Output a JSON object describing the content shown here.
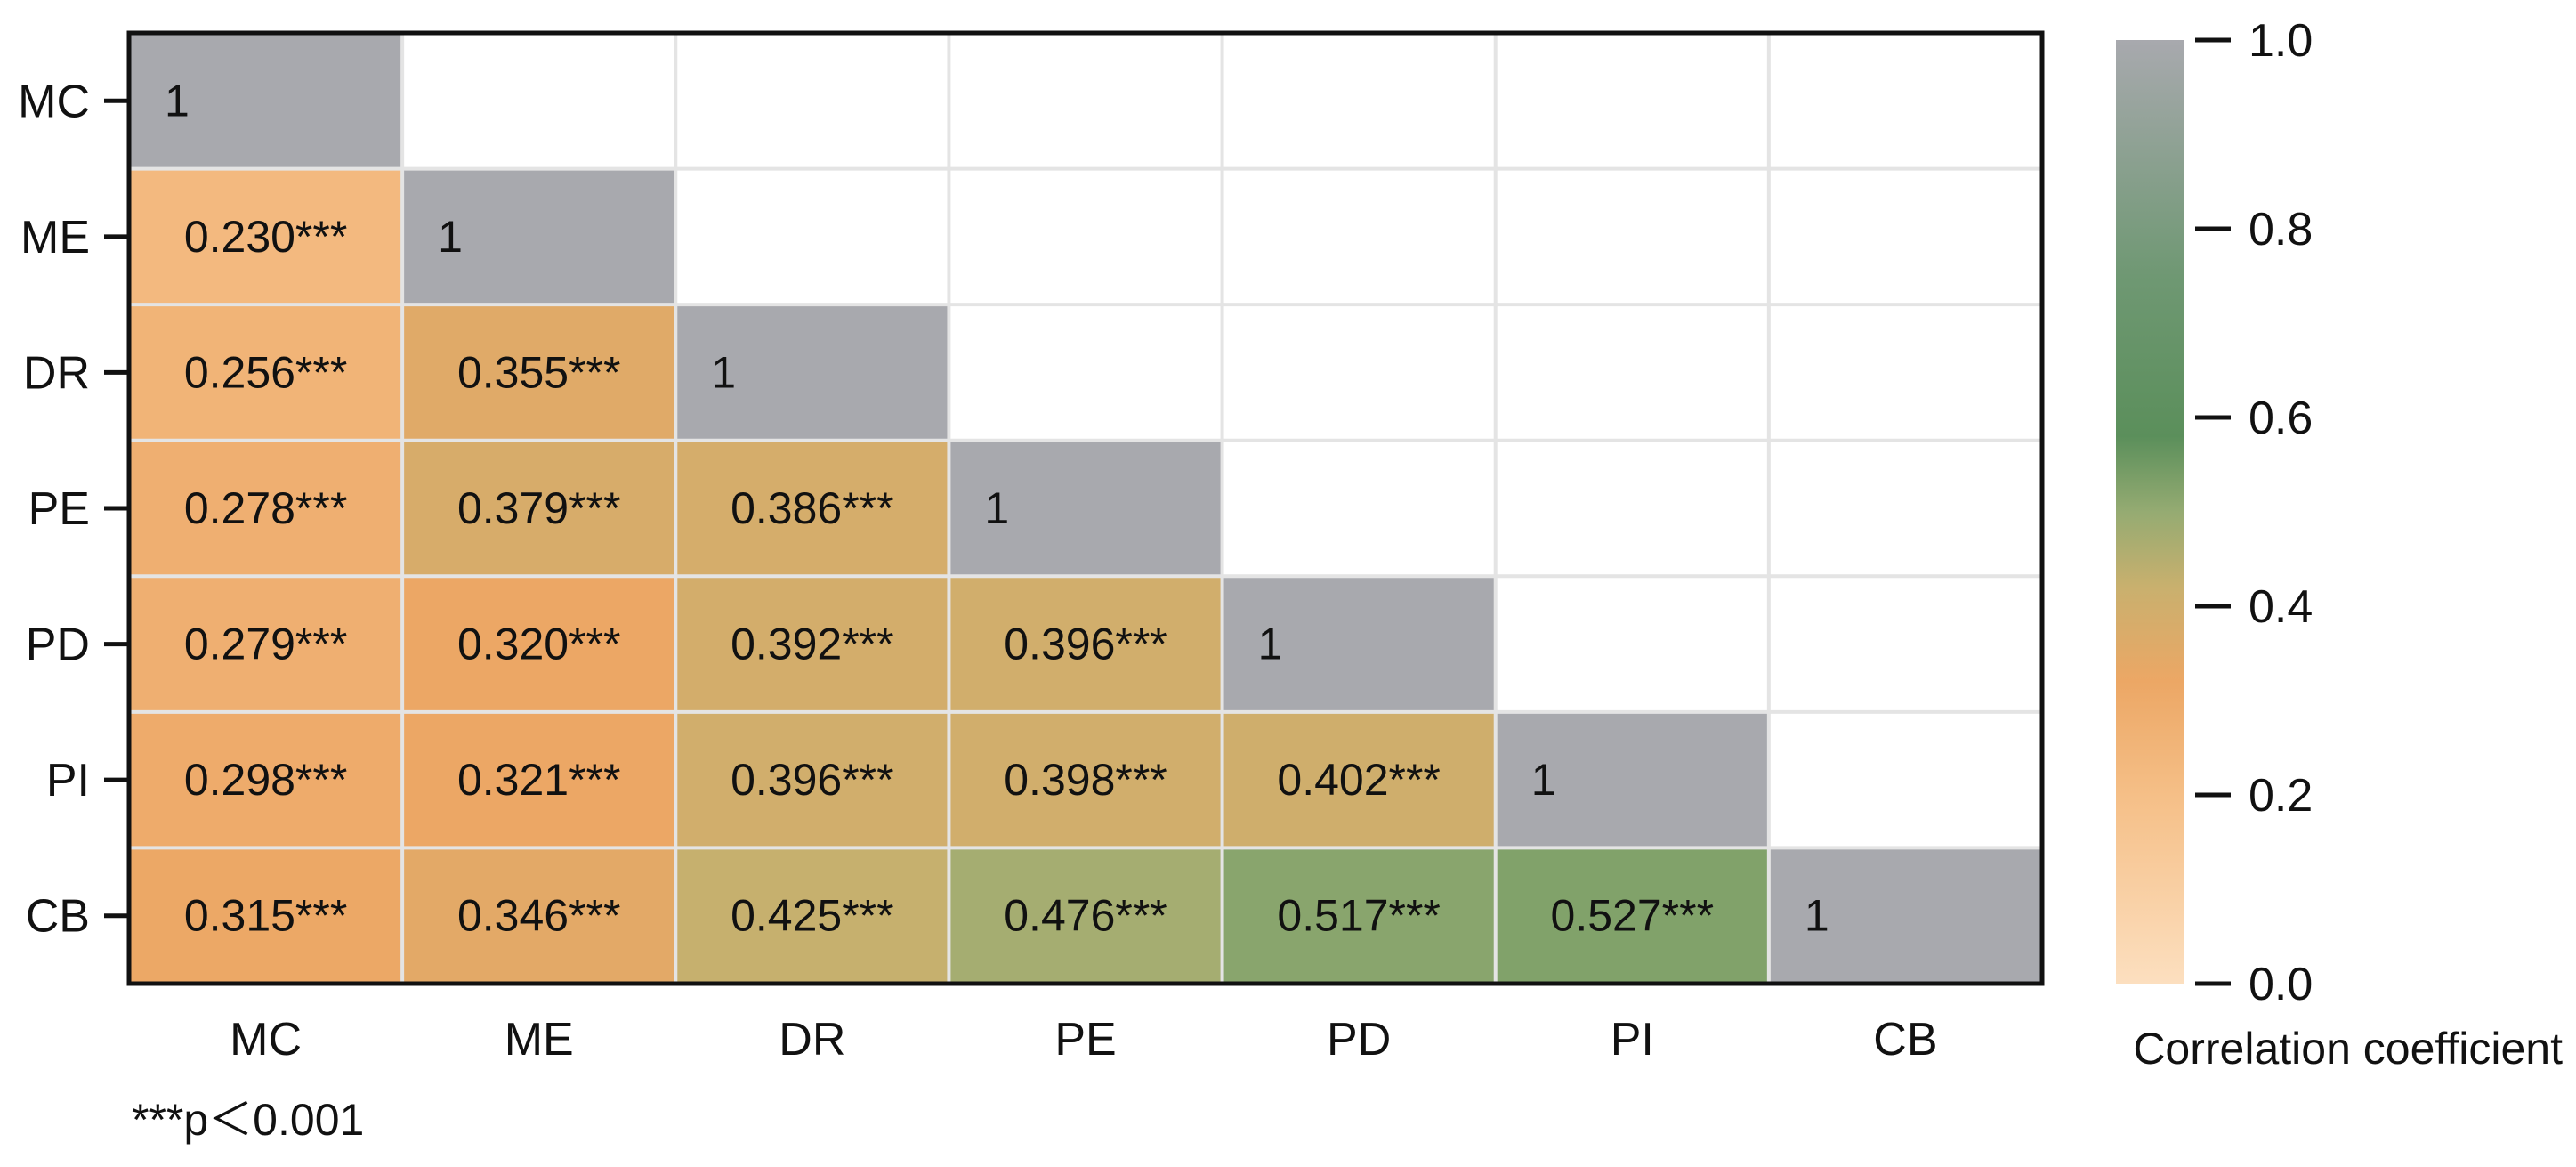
{
  "chart_data": {
    "type": "heatmap",
    "variables": [
      "MC",
      "ME",
      "DR",
      "PE",
      "PD",
      "PI",
      "CB"
    ],
    "x_tick_labels": [
      "MC",
      "ME",
      "DR",
      "PE",
      "PD",
      "PI",
      "CB"
    ],
    "y_tick_labels": [
      "MC",
      "ME",
      "DR",
      "PE",
      "PD",
      "PI",
      "CB"
    ],
    "lower_triangle": "true",
    "cells": [
      {
        "row": "MC",
        "col": "MC",
        "value": 1,
        "label": "1"
      },
      {
        "row": "ME",
        "col": "MC",
        "value": 0.23,
        "label": "0.230***"
      },
      {
        "row": "ME",
        "col": "ME",
        "value": 1,
        "label": "1"
      },
      {
        "row": "DR",
        "col": "MC",
        "value": 0.256,
        "label": "0.256***"
      },
      {
        "row": "DR",
        "col": "ME",
        "value": 0.355,
        "label": "0.355***"
      },
      {
        "row": "DR",
        "col": "DR",
        "value": 1,
        "label": "1"
      },
      {
        "row": "PE",
        "col": "MC",
        "value": 0.278,
        "label": "0.278***"
      },
      {
        "row": "PE",
        "col": "ME",
        "value": 0.379,
        "label": "0.379***"
      },
      {
        "row": "PE",
        "col": "DR",
        "value": 0.386,
        "label": "0.386***"
      },
      {
        "row": "PE",
        "col": "PE",
        "value": 1,
        "label": "1"
      },
      {
        "row": "PD",
        "col": "MC",
        "value": 0.279,
        "label": "0.279***"
      },
      {
        "row": "PD",
        "col": "ME",
        "value": 0.32,
        "label": "0.320***"
      },
      {
        "row": "PD",
        "col": "DR",
        "value": 0.392,
        "label": "0.392***"
      },
      {
        "row": "PD",
        "col": "PE",
        "value": 0.396,
        "label": "0.396***"
      },
      {
        "row": "PD",
        "col": "PD",
        "value": 1,
        "label": "1"
      },
      {
        "row": "PI",
        "col": "MC",
        "value": 0.298,
        "label": "0.298***"
      },
      {
        "row": "PI",
        "col": "ME",
        "value": 0.321,
        "label": "0.321***"
      },
      {
        "row": "PI",
        "col": "DR",
        "value": 0.396,
        "label": "0.396***"
      },
      {
        "row": "PI",
        "col": "PE",
        "value": 0.398,
        "label": "0.398***"
      },
      {
        "row": "PI",
        "col": "PD",
        "value": 0.402,
        "label": "0.402***"
      },
      {
        "row": "PI",
        "col": "PI",
        "value": 1,
        "label": "1"
      },
      {
        "row": "CB",
        "col": "MC",
        "value": 0.315,
        "label": "0.315***"
      },
      {
        "row": "CB",
        "col": "ME",
        "value": 0.346,
        "label": "0.346***"
      },
      {
        "row": "CB",
        "col": "DR",
        "value": 0.425,
        "label": "0.425***"
      },
      {
        "row": "CB",
        "col": "PE",
        "value": 0.476,
        "label": "0.476***"
      },
      {
        "row": "CB",
        "col": "PD",
        "value": 0.517,
        "label": "0.517***"
      },
      {
        "row": "CB",
        "col": "PI",
        "value": 0.527,
        "label": "0.527***"
      },
      {
        "row": "CB",
        "col": "CB",
        "value": 1,
        "label": "1"
      }
    ],
    "diagonal_color": "#a8a9ae",
    "colorbar": {
      "label": "Correlation coefficient",
      "range": [
        0.0,
        1.0
      ],
      "ticks": [
        0.0,
        0.2,
        0.4,
        0.6,
        0.8,
        1.0
      ],
      "tick_labels": [
        "0.0",
        "0.2",
        "0.4",
        "0.6",
        "0.8",
        "1.0"
      ],
      "color_stops": [
        {
          "value": 0.0,
          "color": "#fcdfbf"
        },
        {
          "value": 0.2,
          "color": "#f5bf87"
        },
        {
          "value": 0.32,
          "color": "#eca765"
        },
        {
          "value": 0.42,
          "color": "#c9b06e"
        },
        {
          "value": 0.5,
          "color": "#95ab72"
        },
        {
          "value": 0.58,
          "color": "#5b8f5b"
        },
        {
          "value": 0.75,
          "color": "#6f9873"
        },
        {
          "value": 1.0,
          "color": "#a8a9ae"
        }
      ]
    },
    "footnote": "***p＜0.001"
  }
}
